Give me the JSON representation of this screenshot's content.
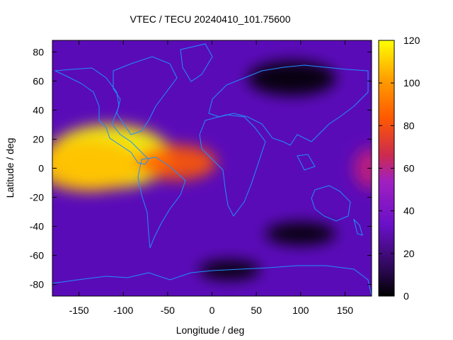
{
  "chart_data": {
    "type": "heatmap",
    "title": "VTEC / TECU 20240410_101.75600",
    "xlabel": "Longitude / deg",
    "ylabel": "Latitude / deg",
    "xlim": [
      -180,
      180
    ],
    "ylim": [
      -88,
      88
    ],
    "xticks": [
      -150,
      -100,
      -50,
      0,
      50,
      100,
      150
    ],
    "yticks": [
      -80,
      -60,
      -40,
      -20,
      0,
      20,
      40,
      60,
      80
    ],
    "colorbar": {
      "range": [
        0,
        120
      ],
      "ticks": [
        0,
        20,
        40,
        60,
        80,
        100,
        120
      ],
      "palette": [
        "#000000",
        "#3b0a7a",
        "#7a00ff",
        "#c0207a",
        "#ff5a00",
        "#ffc000",
        "#ffff00"
      ]
    },
    "grid": false,
    "overlay": "coastlines",
    "features": [
      {
        "lon": -115,
        "lat": 8,
        "value": 112,
        "extent_lon": 70,
        "extent_lat": 22
      },
      {
        "lon": -140,
        "lat": 2,
        "value": 95,
        "extent_lon": 60,
        "extent_lat": 18
      },
      {
        "lon": -40,
        "lat": 4,
        "value": 78,
        "extent_lon": 45,
        "extent_lat": 12
      },
      {
        "lon": 178,
        "lat": 0,
        "value": 62,
        "extent_lon": 18,
        "extent_lat": 14
      },
      {
        "lon": 100,
        "lat": -45,
        "value": 5,
        "extent_lon": 40,
        "extent_lat": 8
      },
      {
        "lon": 20,
        "lat": -70,
        "value": 2,
        "extent_lon": 35,
        "extent_lat": 7
      },
      {
        "lon": 90,
        "lat": 62,
        "value": 8,
        "extent_lon": 50,
        "extent_lat": 12
      }
    ]
  }
}
